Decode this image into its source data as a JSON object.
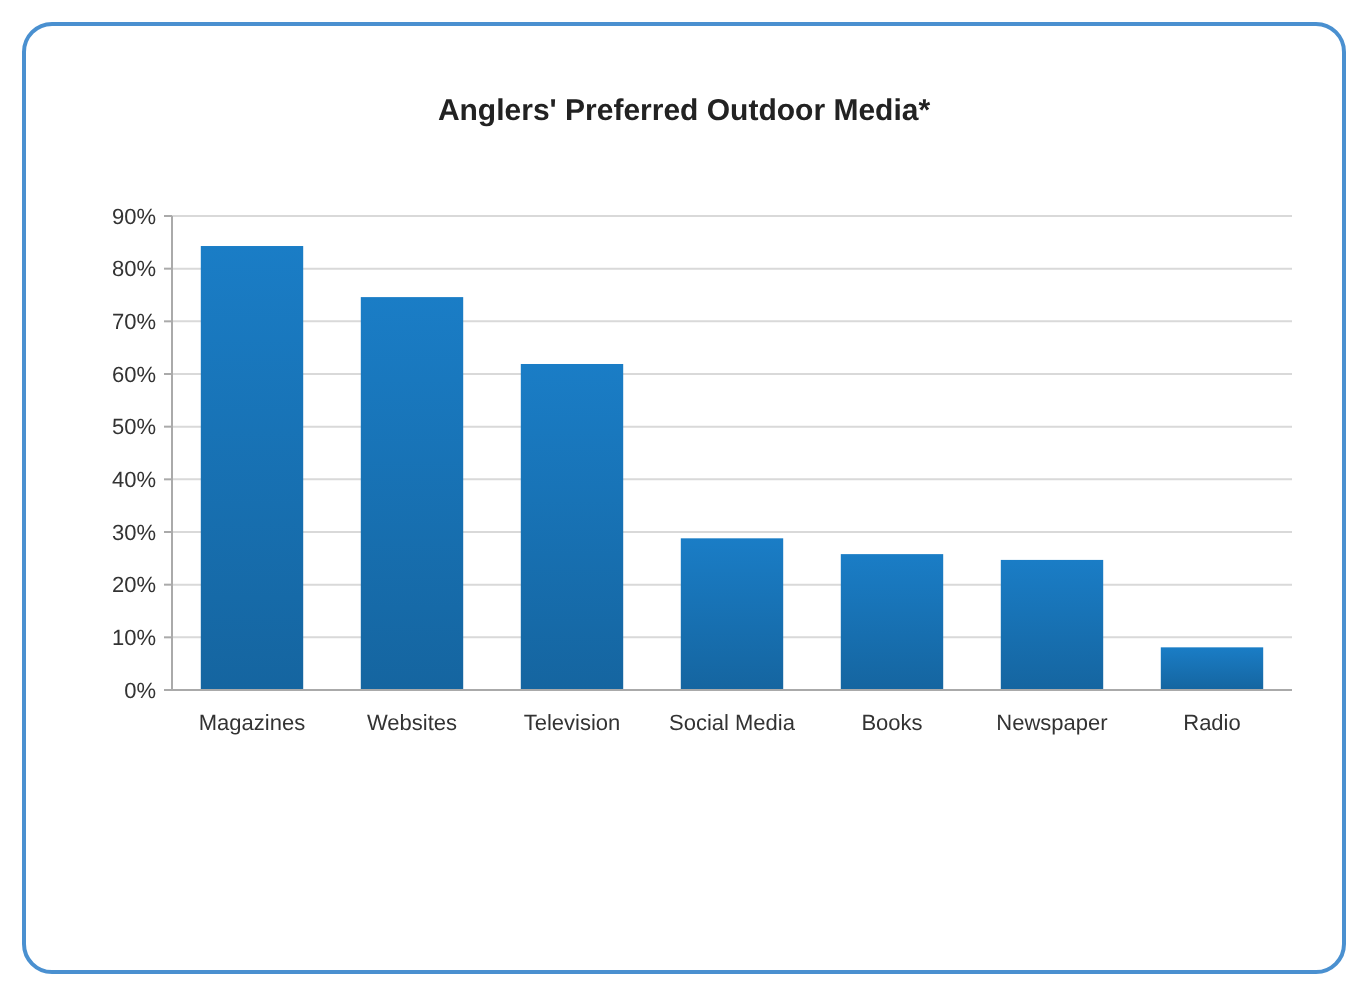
{
  "chart_data": {
    "type": "bar",
    "title": "Anglers' Preferred Outdoor Media*",
    "categories": [
      "Magazines",
      "Websites",
      "Television",
      "Social Media",
      "Books",
      "Newspaper",
      "Radio"
    ],
    "values": [
      84.3,
      74.6,
      61.9,
      28.8,
      25.8,
      24.7,
      8.1
    ],
    "color": "#1a7dc6",
    "ylim": [
      0,
      90
    ],
    "yticks": [
      {
        "value": 0,
        "label": "0%"
      },
      {
        "value": 10,
        "label": "10%"
      },
      {
        "value": 20,
        "label": "20%"
      },
      {
        "value": 30,
        "label": "30%"
      },
      {
        "value": 40,
        "label": "40%"
      },
      {
        "value": 50,
        "label": "50%"
      },
      {
        "value": 60,
        "label": "60%"
      },
      {
        "value": 70,
        "label": "70%"
      },
      {
        "value": 80,
        "label": "80%"
      },
      {
        "value": 90,
        "label": "90%"
      }
    ],
    "grid": "y"
  }
}
